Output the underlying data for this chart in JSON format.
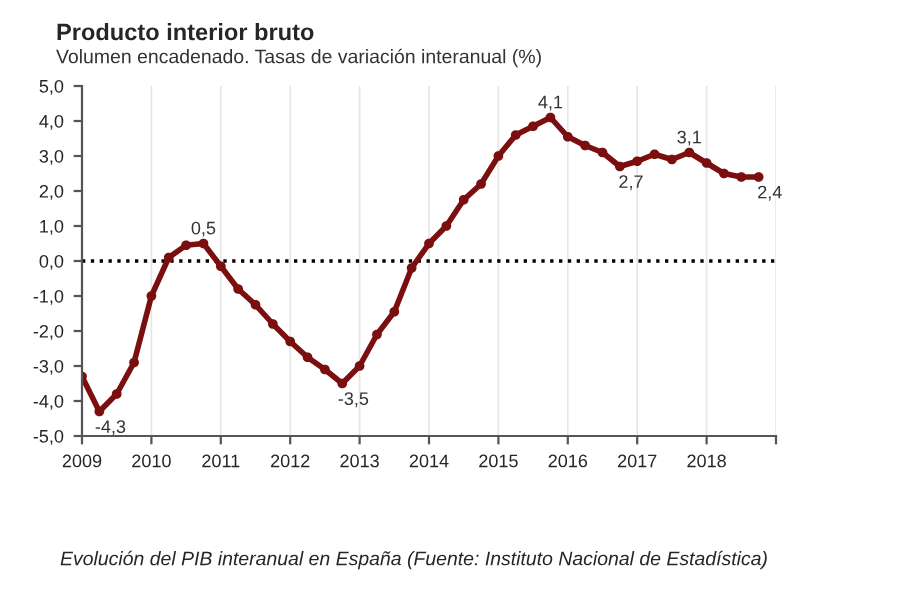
{
  "chart_data": {
    "type": "line",
    "title": "Producto interior bruto",
    "subtitle": "Volumen encadenado. Tasas de variación interanual (%)",
    "x": [
      2009,
      2009.25,
      2009.5,
      2009.75,
      2010,
      2010.25,
      2010.5,
      2010.75,
      2011,
      2011.25,
      2011.5,
      2011.75,
      2012,
      2012.25,
      2012.5,
      2012.75,
      2013,
      2013.25,
      2013.5,
      2013.75,
      2014,
      2014.25,
      2014.5,
      2014.75,
      2015,
      2015.25,
      2015.5,
      2015.75,
      2016,
      2016.25,
      2016.5,
      2016.75,
      2017,
      2017.25,
      2017.5,
      2017.75,
      2018,
      2018.25,
      2018.5,
      2018.75
    ],
    "series": [
      {
        "color": "#7b0e0e",
        "values": [
          -3.3,
          -4.3,
          -3.8,
          -2.9,
          -1.0,
          0.1,
          0.45,
          0.5,
          -0.15,
          -0.8,
          -1.25,
          -1.8,
          -2.3,
          -2.75,
          -3.1,
          -3.5,
          -3.0,
          -2.1,
          -1.45,
          -0.2,
          0.5,
          1.0,
          1.75,
          2.2,
          3.0,
          3.6,
          3.85,
          4.1,
          3.55,
          3.3,
          3.1,
          2.7,
          2.85,
          3.05,
          2.9,
          3.1,
          2.8,
          2.5,
          2.4,
          2.4
        ]
      }
    ],
    "marker": "circle",
    "line_style": "solid",
    "xlim": [
      2009,
      2019
    ],
    "xticks": [
      2009,
      2010,
      2011,
      2012,
      2013,
      2014,
      2015,
      2016,
      2017,
      2018,
      {
        "value": 2019,
        "label": null
      }
    ],
    "ylim": [
      -5,
      5
    ],
    "yticks": [
      {
        "value": 5,
        "label": "5,0"
      },
      {
        "value": 4,
        "label": "4,0"
      },
      {
        "value": 3,
        "label": "3,0"
      },
      {
        "value": 2,
        "label": "2,0"
      },
      {
        "value": 1,
        "label": "1,0"
      },
      {
        "value": 0,
        "label": "0,0"
      },
      {
        "value": -1,
        "label": "-1,0"
      },
      {
        "value": -2,
        "label": "-2,0"
      },
      {
        "value": -3,
        "label": "-3,0"
      },
      {
        "value": -4,
        "label": "-4,0"
      },
      {
        "value": -5,
        "label": "-5,0"
      }
    ],
    "grid": "x",
    "legend": false,
    "ref_lines": [
      {
        "axis": "y",
        "value": 0,
        "color": "#000000",
        "line_style": "dotted"
      }
    ],
    "annotations": [
      {
        "text": "-4,3",
        "x": 2009.25,
        "y": -4.3
      },
      {
        "text": "0,5",
        "x": 2010.75,
        "y": 0.5
      },
      {
        "text": "-3,5",
        "x": 2012.75,
        "y": -3.5
      },
      {
        "text": "4,1",
        "x": 2015.75,
        "y": 4.1
      },
      {
        "text": "2,7",
        "x": 2016.75,
        "y": 2.7
      },
      {
        "text": "3,1",
        "x": 2017.75,
        "y": 3.1
      },
      {
        "text": "2,4",
        "x": 2018.75,
        "y": 2.4
      },
      "Evolución del PIB interanual en España (Fuente: Instituto Nacional de Estadística)"
    ]
  }
}
